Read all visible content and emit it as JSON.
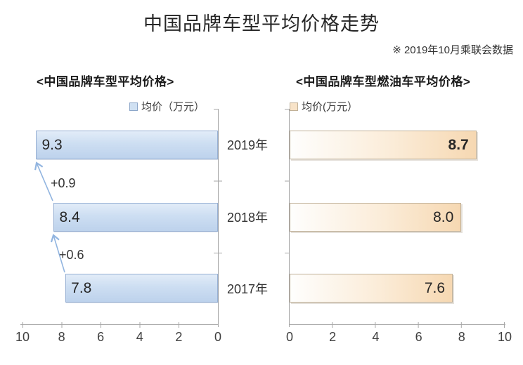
{
  "page": {
    "title": "中国品牌车型平均价格走势",
    "source_note": "※ 2019年10月乘联会数据"
  },
  "chart_data": [
    {
      "type": "bar",
      "orientation": "horizontal",
      "title": "<中国品牌车型平均价格>",
      "legend": "均价（万元）",
      "legend_position": "top",
      "categories": [
        "2019年",
        "2018年",
        "2017年"
      ],
      "values": [
        9.3,
        8.4,
        7.8
      ],
      "value_labels": [
        "9.3",
        "8.4",
        "7.8"
      ],
      "annotations": [
        {
          "label": "+0.9"
        },
        {
          "label": "+0.6"
        }
      ],
      "x_tick_labels": [
        "10",
        "8",
        "6",
        "4",
        "2",
        "0"
      ],
      "xlim": [
        10,
        0
      ],
      "axis_reversed": true,
      "grid": false,
      "bar_fill": "#c8dbf0",
      "bar_border": "#96afd3"
    },
    {
      "type": "bar",
      "orientation": "horizontal",
      "title": "<中国品牌车型燃油车平均价格>",
      "legend": "均价(万元）",
      "legend_position": "top",
      "categories": [
        "2019年",
        "2018年",
        "2017年"
      ],
      "values": [
        8.7,
        8.0,
        7.6
      ],
      "value_labels": [
        "8.7",
        "8.0",
        "7.6"
      ],
      "emphasized_value_label": "8.7",
      "x_tick_labels": [
        "0",
        "2",
        "4",
        "6",
        "8",
        "10"
      ],
      "xlim": [
        0,
        10
      ],
      "axis_reversed": false,
      "grid": false,
      "bar_fill": "#f6d8b2",
      "bar_border": "#c0b097"
    }
  ],
  "colors": {
    "arrow": "#92b5e0",
    "axis": "#a6a6a6",
    "text": "#262626"
  }
}
